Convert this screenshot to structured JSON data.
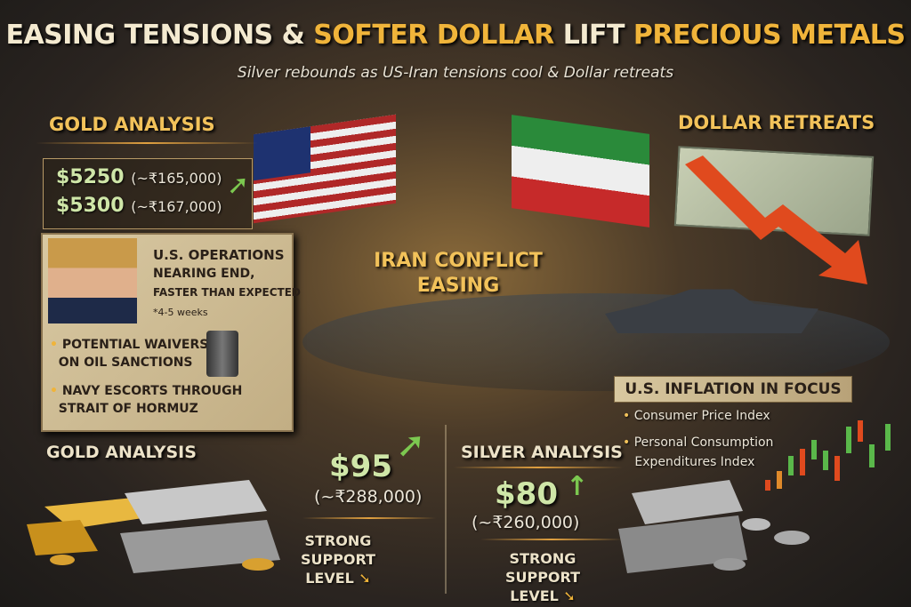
{
  "title": {
    "part1": "EASING TENSIONS & ",
    "part2": "SOFTER DOLLAR ",
    "part3": "LIFT ",
    "part4": "PRECIOUS METALS"
  },
  "subtitle": "Silver rebounds as US-Iran tensions cool & Dollar retreats",
  "gold_top": {
    "header": "GOLD ANALYSIS",
    "prices": [
      {
        "usd": "$5250",
        "inr": "(~₹165,000)"
      },
      {
        "usd": "$5300",
        "inr": "(~₹167,000)"
      }
    ],
    "trend_icon": "arrow-up-green"
  },
  "news_panel": {
    "headline1": "U.S. OPERATIONS",
    "headline2": "NEARING END,",
    "headline3": "FASTER THAN EXPECTED",
    "note": "*4-5 weeks",
    "bullets": [
      {
        "a": "POTENTIAL WAIVERS",
        "b": "ON OIL SANCTIONS"
      },
      {
        "a": "NAVY ESCORTS THROUGH",
        "b": "STRAIT OF HORMUZ"
      }
    ]
  },
  "center": {
    "line1": "IRAN CONFLICT",
    "line2": "EASING"
  },
  "dollar": {
    "header": "DOLLAR RETREATS",
    "trend_icon": "arrow-down-red"
  },
  "inflation": {
    "header": "U.S. INFLATION IN FOCUS",
    "bullets": [
      "Consumer Price Index",
      "Personal Consumption",
      "Expenditures Index"
    ]
  },
  "gold_bottom": {
    "header": "GOLD ANALYSIS",
    "usd": "$95",
    "inr": "(~₹288,000)",
    "support1": "STRONG SUPPORT",
    "support2": "LEVEL"
  },
  "silver": {
    "header": "SILVER ANALYSIS",
    "usd": "$80",
    "inr": "(~₹260,000)",
    "support1": "STRONG SUPPORT",
    "support2": "LEVEL"
  },
  "colors": {
    "accent_gold": "#f0b43a",
    "price_green": "#cfe6a8",
    "down_red": "#e04a1e"
  }
}
